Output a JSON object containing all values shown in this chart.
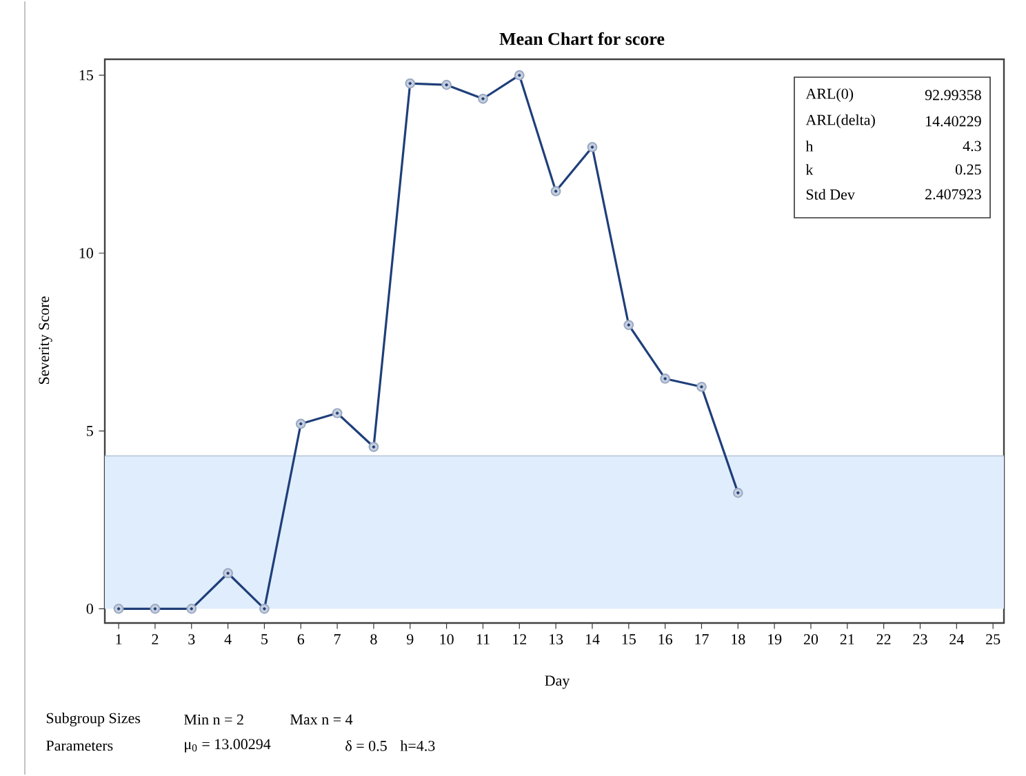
{
  "chart_data": {
    "type": "line",
    "title": "Mean Chart for score",
    "xlabel": "Day",
    "ylabel": "Severity Score",
    "x": [
      1,
      2,
      3,
      4,
      5,
      6,
      7,
      8,
      9,
      10,
      11,
      12,
      13,
      14,
      15,
      16,
      17,
      18
    ],
    "series": [
      {
        "color": "#1f3f7a",
        "values": [
          0,
          0,
          0,
          1.0,
          0,
          5.2,
          5.5,
          4.55,
          14.77,
          14.73,
          14.34,
          15.0,
          11.74,
          12.98,
          7.98,
          6.47,
          6.24,
          3.26
        ]
      }
    ],
    "marker": "circle",
    "line_style": "solid",
    "xlim": [
      0.62,
      25.3
    ],
    "ylim": [
      -0.4,
      15.45
    ],
    "xticks": [
      1,
      2,
      3,
      4,
      5,
      6,
      7,
      8,
      9,
      10,
      11,
      12,
      13,
      14,
      15,
      16,
      17,
      18,
      19,
      20,
      21,
      22,
      23,
      24,
      25
    ],
    "yticks": [
      0,
      5,
      10,
      15
    ],
    "ref_lines": [
      {
        "axis": "y",
        "value": 4.3,
        "color": "#b4c3d8"
      }
    ],
    "bands": [
      {
        "axis": "y",
        "from": 0,
        "to": 4.3,
        "color": "#e0edfc"
      }
    ],
    "annotations": [
      "ARL(0)",
      "92.99358",
      "ARL(delta)",
      "14.40229",
      "h",
      "4.3",
      "k",
      "0.25",
      "Std Dev",
      "2.407923",
      "Subgroup Sizes",
      "Min n = 2",
      "Max n = 4",
      "Parameters",
      "μ$_{0}$ = 13.00294",
      "δ = 0.5",
      "h=4.3"
    ]
  }
}
